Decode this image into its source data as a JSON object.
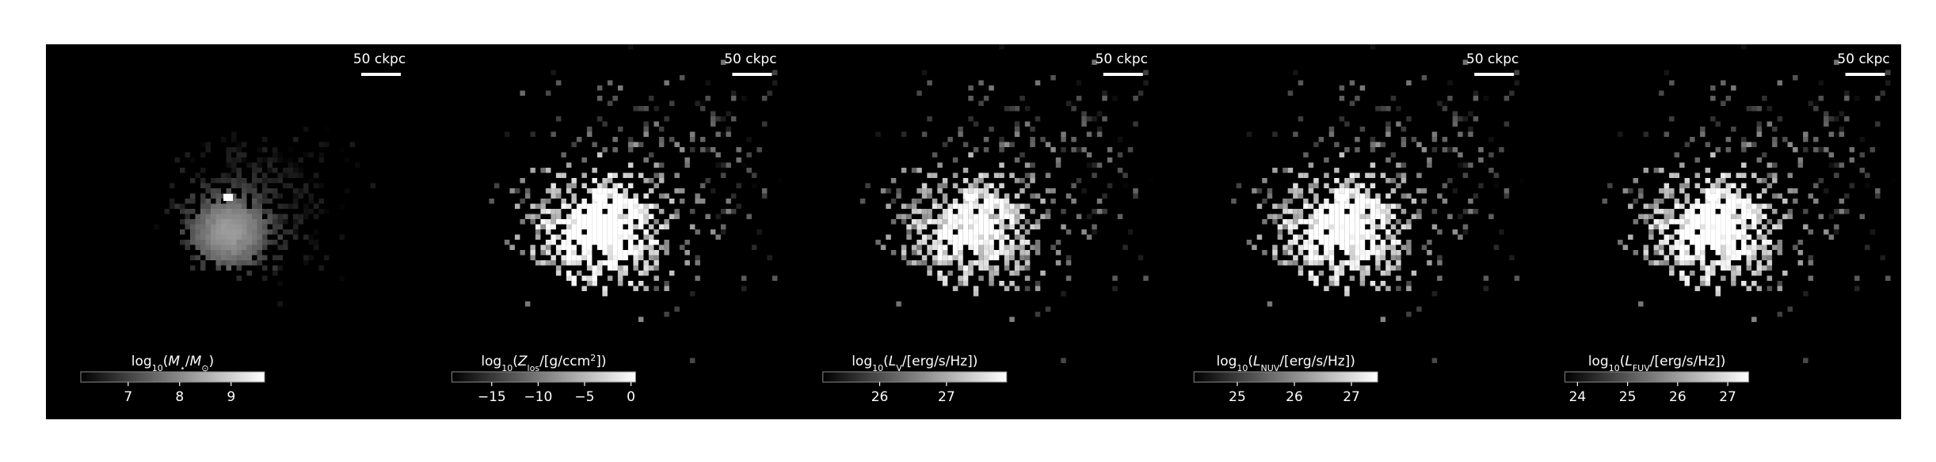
{
  "panels": [
    {
      "scale_bar": "50 ckpc",
      "colorbar": {
        "label": [
          {
            "text": "log"
          },
          {
            "text": "10",
            "sub": true
          },
          {
            "text": "("
          },
          {
            "text": "M",
            "italic": true
          },
          {
            "text": "⋆",
            "sub": true
          },
          {
            "text": "/"
          },
          {
            "text": "M",
            "italic": true
          },
          {
            "text": "⊙",
            "sub": true
          },
          {
            "text": ")"
          }
        ],
        "lim": [
          6.08,
          9.65
        ],
        "ticks": [
          7,
          8,
          9
        ]
      }
    },
    {
      "scale_bar": "50 ckpc",
      "colorbar": {
        "label": [
          {
            "text": "log"
          },
          {
            "text": "10",
            "sub": true
          },
          {
            "text": "("
          },
          {
            "text": "Z",
            "italic": true
          },
          {
            "text": "los",
            "sub": true
          },
          {
            "text": "/[g/ccm"
          },
          {
            "text": "2",
            "sup": true
          },
          {
            "text": "])"
          }
        ],
        "lim": [
          -19.3,
          0.5
        ],
        "ticks": [
          {
            "value": -15,
            "label": "−15"
          },
          {
            "value": -10,
            "label": "−10"
          },
          {
            "value": -5,
            "label": "−5"
          },
          0
        ]
      }
    },
    {
      "scale_bar": "50 ckpc",
      "colorbar": {
        "label": [
          {
            "text": "log"
          },
          {
            "text": "10",
            "sub": true
          },
          {
            "text": "("
          },
          {
            "text": "L",
            "italic": true
          },
          {
            "text": "V",
            "sub": true
          },
          {
            "text": "/[erg/s/Hz])"
          }
        ],
        "lim": [
          25.15,
          27.9
        ],
        "ticks": [
          26,
          27
        ]
      }
    },
    {
      "scale_bar": "50 ckpc",
      "colorbar": {
        "label": [
          {
            "text": "log"
          },
          {
            "text": "10",
            "sub": true
          },
          {
            "text": "("
          },
          {
            "text": "L",
            "italic": true
          },
          {
            "text": "NUV",
            "sub": true
          },
          {
            "text": "/[erg/s/Hz])"
          }
        ],
        "lim": [
          24.24,
          27.46
        ],
        "ticks": [
          25,
          26,
          27
        ]
      }
    },
    {
      "scale_bar": "50 ckpc",
      "colorbar": {
        "label": [
          {
            "text": "log"
          },
          {
            "text": "10",
            "sub": true
          },
          {
            "text": "("
          },
          {
            "text": "L",
            "italic": true
          },
          {
            "text": "FUV",
            "sub": true
          },
          {
            "text": "/[erg/s/Hz])"
          }
        ],
        "lim": [
          23.75,
          27.42
        ],
        "ticks": [
          24,
          25,
          26,
          27
        ]
      }
    }
  ]
}
